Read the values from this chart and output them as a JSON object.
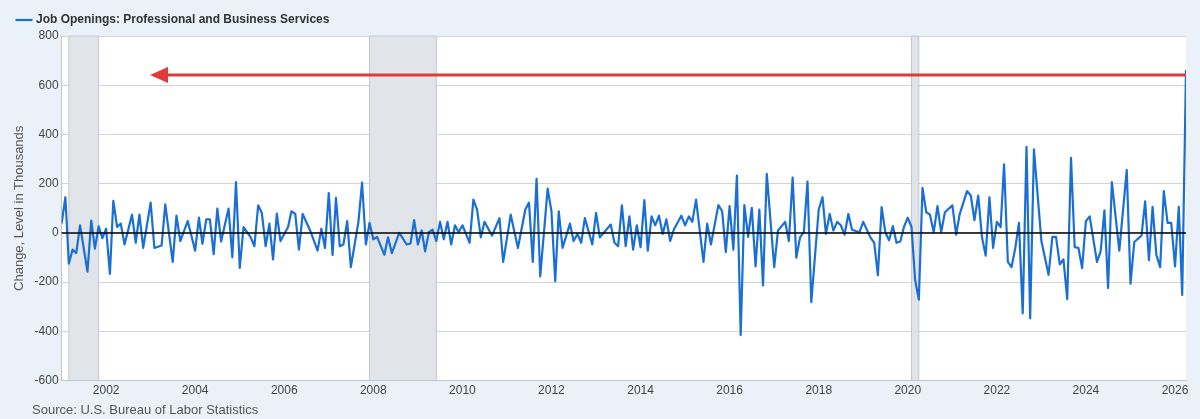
{
  "chart_data": {
    "type": "line",
    "ylabel": "Change, Level in Thousands",
    "legend": "top left",
    "grid": "y",
    "marker": "none",
    "line_style": "solid",
    "x": [
      "2001-01",
      "2001-02",
      "2001-03",
      "2001-04",
      "2001-05",
      "2001-06",
      "2001-08",
      "2001-09",
      "2001-10",
      "2001-11",
      "2001-12",
      "2002-01",
      "2002-02",
      "2002-03",
      "2002-04",
      "2002-05",
      "2002-06",
      "2002-08",
      "2002-09",
      "2002-10",
      "2002-11",
      "2003-01",
      "2003-02",
      "2003-04",
      "2003-05",
      "2003-07",
      "2003-08",
      "2003-09",
      "2003-11",
      "2004-01",
      "2004-02",
      "2004-03",
      "2004-04",
      "2004-05",
      "2004-06",
      "2004-07",
      "2004-08",
      "2004-10",
      "2004-11",
      "2004-12",
      "2005-01",
      "2005-02",
      "2005-04",
      "2005-05",
      "2005-06",
      "2005-07",
      "2005-08",
      "2005-09",
      "2005-10",
      "2005-11",
      "2005-12",
      "2006-02",
      "2006-03",
      "2006-04",
      "2006-05",
      "2006-06",
      "2006-08",
      "2006-10",
      "2006-11",
      "2006-12",
      "2007-01",
      "2007-02",
      "2007-03",
      "2007-04",
      "2007-05",
      "2007-06",
      "2007-07",
      "2007-09",
      "2007-10",
      "2007-11",
      "2007-12",
      "2008-01",
      "2008-02",
      "2008-04",
      "2008-05",
      "2008-06",
      "2008-08",
      "2008-10",
      "2008-11",
      "2008-12",
      "2009-01",
      "2009-02",
      "2009-03",
      "2009-04",
      "2009-05",
      "2009-06",
      "2009-07",
      "2009-08",
      "2009-09",
      "2009-10",
      "2009-11",
      "2009-12",
      "2010-01",
      "2010-03",
      "2010-04",
      "2010-05",
      "2010-06",
      "2010-07",
      "2010-09",
      "2010-11",
      "2010-12",
      "2011-02",
      "2011-04",
      "2011-06",
      "2011-07",
      "2011-08",
      "2011-09",
      "2011-10",
      "2011-12",
      "2012-01",
      "2012-02",
      "2012-03",
      "2012-04",
      "2012-06",
      "2012-07",
      "2012-08",
      "2012-09",
      "2012-10",
      "2012-12",
      "2013-01",
      "2013-02",
      "2013-05",
      "2013-06",
      "2013-07",
      "2013-08",
      "2013-09",
      "2013-10",
      "2013-11",
      "2013-12",
      "2014-01",
      "2014-02",
      "2014-03",
      "2014-04",
      "2014-05",
      "2014-06",
      "2014-07",
      "2014-08",
      "2014-09",
      "2014-10",
      "2014-12",
      "2015-01",
      "2015-02",
      "2015-03",
      "2015-04",
      "2015-06",
      "2015-07",
      "2015-08",
      "2015-10",
      "2015-11",
      "2015-12",
      "2016-01",
      "2016-02",
      "2016-03",
      "2016-04",
      "2016-05",
      "2016-06",
      "2016-07",
      "2016-08",
      "2016-09",
      "2016-10",
      "2016-11",
      "2017-01",
      "2017-02",
      "2017-04",
      "2017-05",
      "2017-06",
      "2017-07",
      "2017-08",
      "2017-09",
      "2017-10",
      "2017-11",
      "2018-01",
      "2018-02",
      "2018-03",
      "2018-04",
      "2018-05",
      "2018-06",
      "2018-07",
      "2018-08",
      "2018-09",
      "2018-10",
      "2018-12",
      "2019-01",
      "2019-03",
      "2019-04",
      "2019-05",
      "2019-06",
      "2019-07",
      "2019-08",
      "2019-09",
      "2019-10",
      "2019-11",
      "2019-12",
      "2020-01",
      "2020-02",
      "2020-03",
      "2020-04",
      "2020-05",
      "2020-06",
      "2020-07",
      "2020-08",
      "2020-09",
      "2020-10",
      "2020-11",
      "2021-01",
      "2021-02",
      "2021-03",
      "2021-05",
      "2021-06",
      "2021-07",
      "2021-08",
      "2021-09",
      "2021-10",
      "2021-11",
      "2021-12",
      "2022-01",
      "2022-02",
      "2022-03",
      "2022-04",
      "2022-05",
      "2022-06",
      "2022-07",
      "2022-08",
      "2022-09",
      "2022-10",
      "2022-11",
      "2023-01",
      "2023-03",
      "2023-04",
      "2023-05",
      "2023-06",
      "2023-07",
      "2023-08",
      "2023-09",
      "2023-10",
      "2023-11",
      "2023-12",
      "2024-01",
      "2024-02",
      "2024-04",
      "2024-05",
      "2024-06",
      "2024-07",
      "2024-08",
      "2024-10",
      "2024-12",
      "2025-01",
      "2025-02",
      "2025-04",
      "2025-05",
      "2025-06",
      "2025-07",
      "2025-08",
      "2025-09",
      "2025-10",
      "2025-11",
      "2025-12",
      "2026-01",
      "2026-02",
      "2026-03",
      "2026-04"
    ],
    "series": [
      {
        "name": "Job Openings: Professional and Business Services",
        "color": "#1a6fd4",
        "values": [
          38,
          145,
          -125,
          -68,
          -82,
          31,
          -157,
          50,
          -64,
          27,
          -21,
          17,
          -167,
          130,
          24,
          38,
          -47,
          74,
          -40,
          74,
          -61,
          123,
          -61,
          -51,
          116,
          -118,
          70,
          -33,
          48,
          -72,
          62,
          -44,
          55,
          55,
          -86,
          99,
          -35,
          99,
          -99,
          206,
          -142,
          24,
          -18,
          -54,
          112,
          81,
          -54,
          38,
          -108,
          78,
          -33,
          24,
          88,
          77,
          -68,
          77,
          10,
          -72,
          17,
          -61,
          162,
          -89,
          142,
          -54,
          -47,
          48,
          -139,
          45,
          204,
          -47,
          41,
          -26,
          -16,
          -89,
          -18,
          -82,
          0,
          -47,
          -43,
          52,
          -47,
          10,
          -75,
          3,
          13,
          -33,
          45,
          -26,
          45,
          -47,
          31,
          3,
          31,
          -40,
          135,
          95,
          -18,
          45,
          -11,
          60,
          -118,
          74,
          -61,
          95,
          123,
          -118,
          220,
          -177,
          180,
          88,
          -196,
          88,
          -61,
          38,
          -33,
          -4,
          -40,
          60,
          -47,
          81,
          -18,
          34,
          -40,
          -54,
          112,
          -54,
          67,
          -68,
          31,
          -58,
          133,
          -72,
          67,
          31,
          70,
          -4,
          55,
          -33,
          14,
          70,
          31,
          67,
          45,
          135,
          -118,
          38,
          -47,
          113,
          88,
          -78,
          109,
          -68,
          233,
          -415,
          113,
          -16,
          102,
          -136,
          95,
          -213,
          240,
          -139,
          10,
          45,
          -33,
          225,
          -101,
          -18,
          3,
          208,
          -281,
          95,
          145,
          -4,
          77,
          10,
          45,
          31,
          -7,
          77,
          13,
          3,
          45,
          -18,
          -40,
          -172,
          105,
          3,
          -30,
          28,
          -40,
          -35,
          24,
          62,
          24,
          -189,
          -271,
          183,
          84,
          74,
          3,
          109,
          3,
          84,
          112,
          -7,
          74,
          170,
          152,
          52,
          152,
          -18,
          -92,
          145,
          -61,
          45,
          24,
          279,
          -118,
          -139,
          -61,
          41,
          -327,
          350,
          -347,
          339,
          -33,
          -170,
          -16,
          -16,
          -128,
          -108,
          -269,
          305,
          -58,
          -61,
          -143,
          48,
          67,
          -118,
          -75,
          92,
          -224,
          206,
          -72,
          255,
          -206,
          -37,
          -11,
          128,
          -111,
          106,
          -89,
          -139,
          170,
          41,
          41,
          -136,
          106,
          -252,
          662
        ]
      }
    ],
    "xlim": [
      "2001-01",
      "2026-04"
    ],
    "xticks": [
      "2002",
      "2004",
      "2006",
      "2008",
      "2010",
      "2012",
      "2014",
      "2016",
      "2018",
      "2020",
      "2022",
      "2024",
      "2026"
    ],
    "ylim": [
      -600,
      800
    ],
    "yticks": [
      -600,
      -400,
      -200,
      0,
      200,
      400,
      600,
      800
    ],
    "ref_lines": [
      {
        "axis": "y",
        "value": 0,
        "color": "#000000"
      }
    ],
    "bands": [
      {
        "axis": "x",
        "from": "2001-03",
        "to": "2001-11",
        "color": "#e1e5ea"
      },
      {
        "axis": "x",
        "from": "2007-12",
        "to": "2009-06",
        "color": "#e1e5ea"
      },
      {
        "axis": "x",
        "from": "2020-02",
        "to": "2020-04",
        "color": "#e1e5ea"
      }
    ],
    "annotations": [
      "Source: U.S. Bureau of Labor Statistics"
    ]
  }
}
